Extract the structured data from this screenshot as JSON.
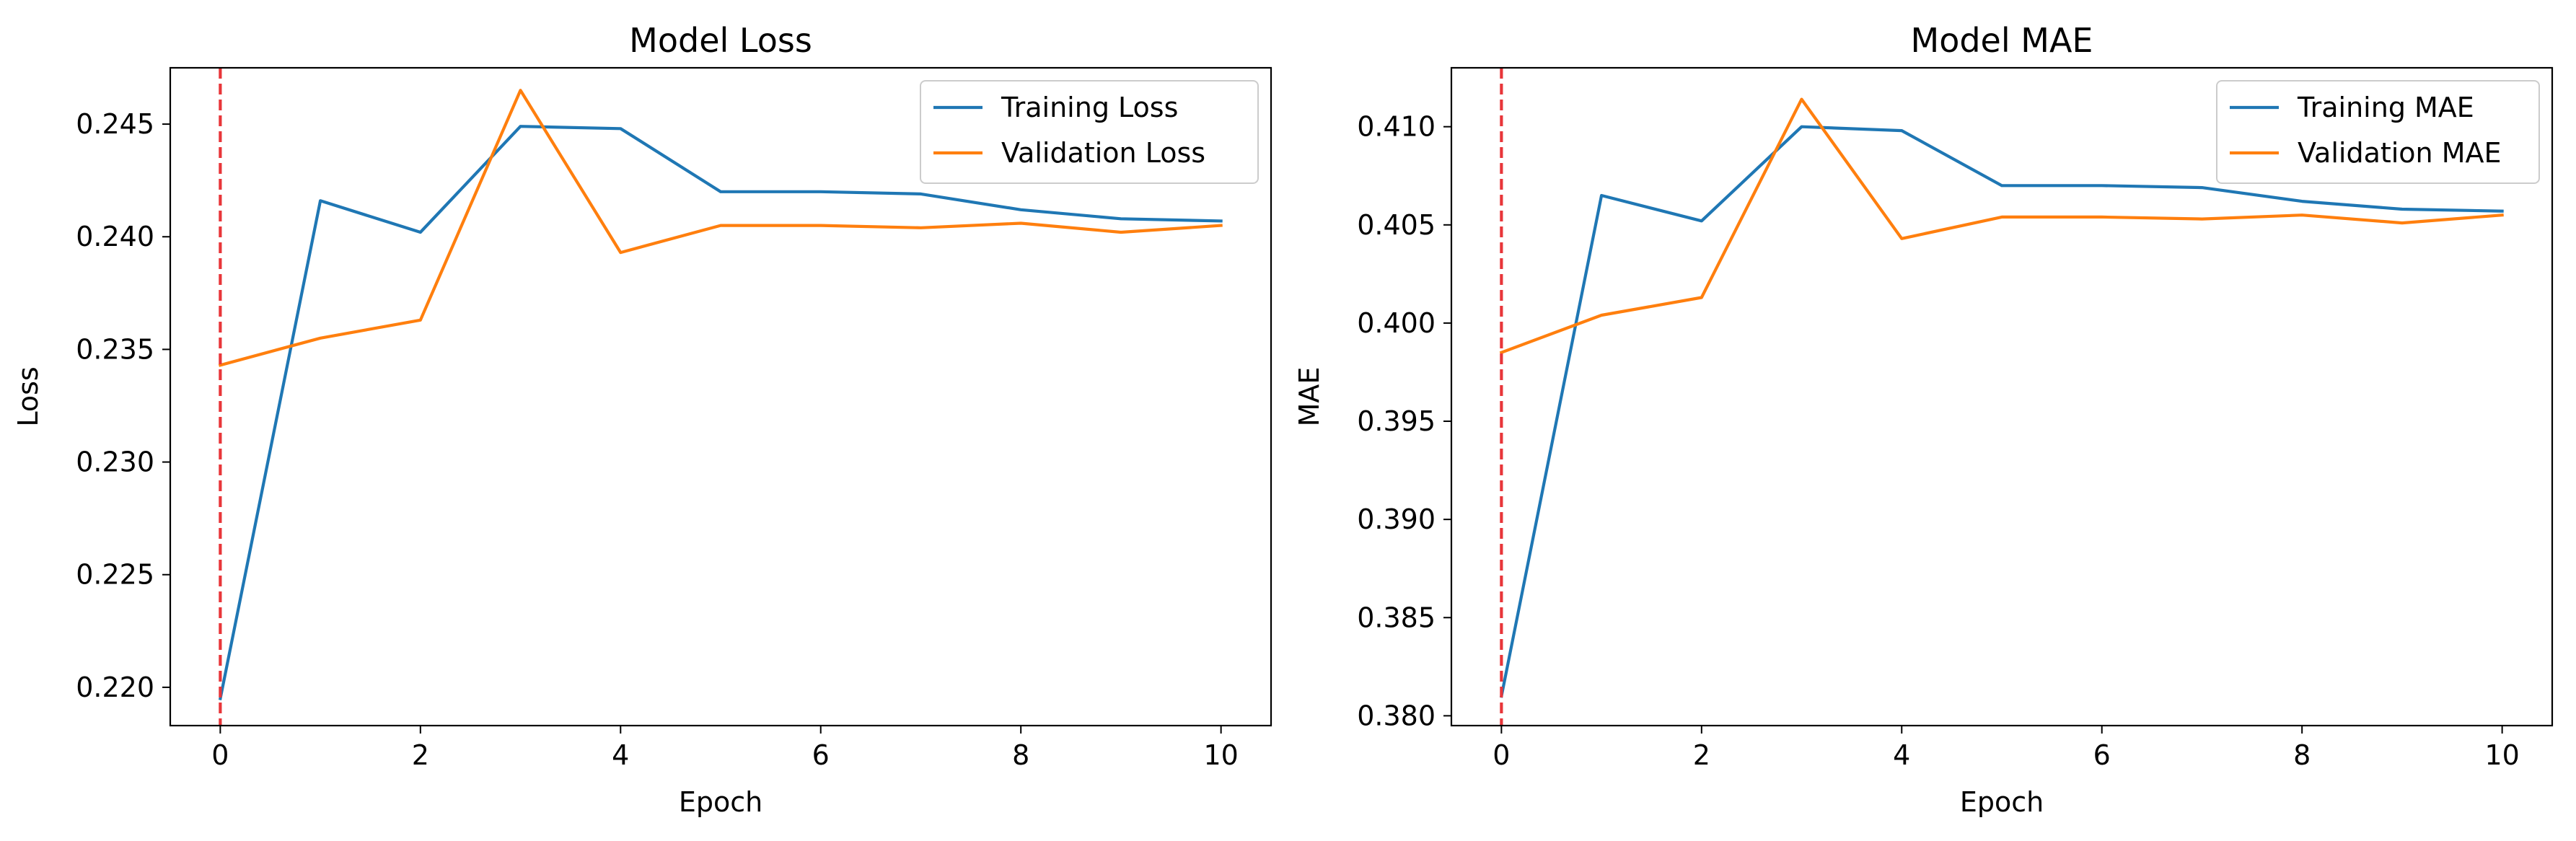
{
  "colors": {
    "training": "#1f77b4",
    "validation": "#ff7f0e",
    "marker_line": "#e8363a",
    "axes": "#000000",
    "background": "#ffffff"
  },
  "chart_data": [
    {
      "type": "line",
      "title": "Model Loss",
      "xlabel": "Epoch",
      "ylabel": "Loss",
      "xlim": [
        -0.5,
        10.5
      ],
      "ylim": [
        0.2183,
        0.2475
      ],
      "xticks": [
        0,
        2,
        4,
        6,
        8,
        10
      ],
      "xtick_labels": [
        "0",
        "2",
        "4",
        "6",
        "8",
        "10"
      ],
      "yticks": [
        0.22,
        0.225,
        0.23,
        0.235,
        0.24,
        0.245
      ],
      "ytick_labels": [
        "0.220",
        "0.225",
        "0.230",
        "0.235",
        "0.240",
        "0.245"
      ],
      "grid": false,
      "legend_position": "top-right",
      "vline_x": 0,
      "x": [
        0,
        1,
        2,
        3,
        4,
        5,
        6,
        7,
        8,
        9,
        10
      ],
      "series": [
        {
          "name": "Training Loss",
          "values": [
            0.2195,
            0.2416,
            0.2402,
            0.2449,
            0.2448,
            0.242,
            0.242,
            0.2419,
            0.2412,
            0.2408,
            0.2407
          ]
        },
        {
          "name": "Validation Loss",
          "values": [
            0.2343,
            0.2355,
            0.2363,
            0.2465,
            0.2393,
            0.2405,
            0.2405,
            0.2404,
            0.2406,
            0.2402,
            0.2405
          ]
        }
      ]
    },
    {
      "type": "line",
      "title": "Model MAE",
      "xlabel": "Epoch",
      "ylabel": "MAE",
      "xlim": [
        -0.5,
        10.5
      ],
      "ylim": [
        0.3795,
        0.413
      ],
      "xticks": [
        0,
        2,
        4,
        6,
        8,
        10
      ],
      "xtick_labels": [
        "0",
        "2",
        "4",
        "6",
        "8",
        "10"
      ],
      "yticks": [
        0.38,
        0.385,
        0.39,
        0.395,
        0.4,
        0.405,
        0.41
      ],
      "ytick_labels": [
        "0.380",
        "0.385",
        "0.390",
        "0.395",
        "0.400",
        "0.405",
        "0.410"
      ],
      "grid": false,
      "legend_position": "top-right",
      "vline_x": 0,
      "x": [
        0,
        1,
        2,
        3,
        4,
        5,
        6,
        7,
        8,
        9,
        10
      ],
      "series": [
        {
          "name": "Training MAE",
          "values": [
            0.381,
            0.4065,
            0.4052,
            0.41,
            0.4098,
            0.407,
            0.407,
            0.4069,
            0.4062,
            0.4058,
            0.4057
          ]
        },
        {
          "name": "Validation MAE",
          "values": [
            0.3985,
            0.4004,
            0.4013,
            0.4114,
            0.4043,
            0.4054,
            0.4054,
            0.4053,
            0.4055,
            0.4051,
            0.4055
          ]
        }
      ]
    }
  ]
}
